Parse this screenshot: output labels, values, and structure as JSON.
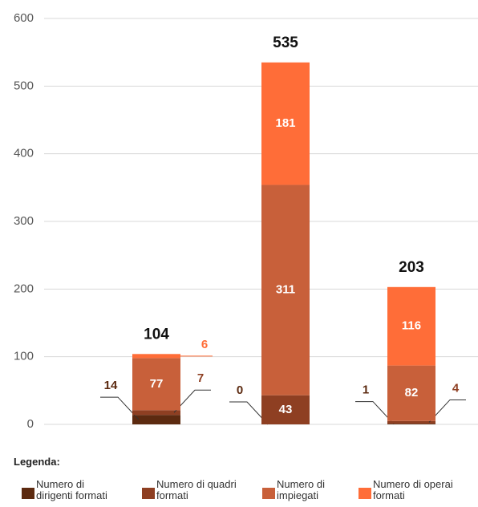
{
  "chart_data": {
    "type": "bar",
    "stacked": true,
    "categories": [
      null,
      null,
      null
    ],
    "series": [
      {
        "name": "Numero di dirigenti formati",
        "color": "#5c2a10",
        "values": [
          14,
          0,
          1
        ]
      },
      {
        "name": "Numero di quadri formati",
        "color": "#8e3f22",
        "values": [
          7,
          43,
          4
        ]
      },
      {
        "name": "Numero di impiegati",
        "color": "#c8603a",
        "values": [
          77,
          311,
          82
        ]
      },
      {
        "name": "Numero di operai formati",
        "color": "#ff6d38",
        "values": [
          6,
          181,
          116
        ]
      }
    ],
    "totals": [
      104,
      535,
      203
    ],
    "ylim": [
      0,
      600
    ],
    "yticks": [
      0,
      100,
      200,
      300,
      400,
      500,
      600
    ],
    "grid": true,
    "legend_title": "Legenda:"
  }
}
